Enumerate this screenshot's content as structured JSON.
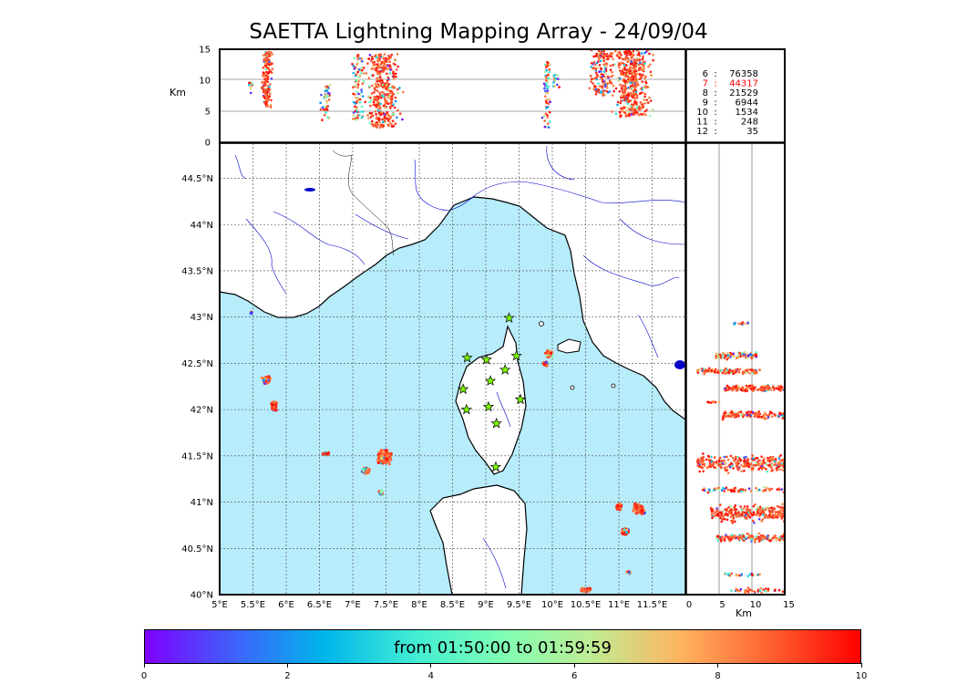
{
  "title": "SAETTA Lightning Mapping Array - 24/09/04",
  "altitude_panel": {
    "ylabel": "Km",
    "ticks": [
      "0",
      "5",
      "10",
      "15"
    ]
  },
  "side_panel": {
    "xlabel": "Km",
    "ticks": [
      "0",
      "5",
      "10",
      "15"
    ]
  },
  "counts": [
    {
      "level": "6",
      "sep": ":",
      "count": "76358",
      "color": "#000000"
    },
    {
      "level": "7",
      "sep": ":",
      "count": "44317",
      "color": "#ff0000"
    },
    {
      "level": "8",
      "sep": ":",
      "count": "21529",
      "color": "#000000"
    },
    {
      "level": "9",
      "sep": ":",
      "count": "6944",
      "color": "#000000"
    },
    {
      "level": "10",
      "sep": ":",
      "count": "1534",
      "color": "#000000"
    },
    {
      "level": "11",
      "sep": ":",
      "count": "248",
      "color": "#000000"
    },
    {
      "level": "12",
      "sep": ":",
      "count": "35",
      "color": "#000000"
    }
  ],
  "map": {
    "lat_ticks": [
      "40°N",
      "40.5°N",
      "41°N",
      "41.5°N",
      "42°N",
      "42.5°N",
      "43°N",
      "43.5°N",
      "44°N",
      "44.5°N"
    ],
    "lon_ticks": [
      "5°E",
      "5.5°E",
      "6°E",
      "6.5°E",
      "7°E",
      "7.5°E",
      "8°E",
      "8.5°E",
      "9°E",
      "9.5°E",
      "10°E",
      "10.5°E",
      "11°E",
      "11.5°E"
    ],
    "sea_color": "#b7ecfb",
    "land_color": "#ffffff",
    "river_color": "#0000cc",
    "station_color": "#7fff00",
    "stations": [
      {
        "lon": 9.35,
        "lat": 42.99
      },
      {
        "lon": 8.72,
        "lat": 42.56
      },
      {
        "lon": 9.01,
        "lat": 42.54
      },
      {
        "lon": 9.46,
        "lat": 42.58
      },
      {
        "lon": 9.29,
        "lat": 42.43
      },
      {
        "lon": 9.07,
        "lat": 42.31
      },
      {
        "lon": 8.66,
        "lat": 42.22
      },
      {
        "lon": 9.52,
        "lat": 42.11
      },
      {
        "lon": 8.71,
        "lat": 42.0
      },
      {
        "lon": 9.04,
        "lat": 42.03
      },
      {
        "lon": 9.16,
        "lat": 41.85
      },
      {
        "lon": 9.15,
        "lat": 41.38
      }
    ]
  },
  "colorbar": {
    "label": "from 01:50:00 to 01:59:59",
    "ticks": [
      "0",
      "2",
      "4",
      "6",
      "8",
      "10"
    ]
  }
}
